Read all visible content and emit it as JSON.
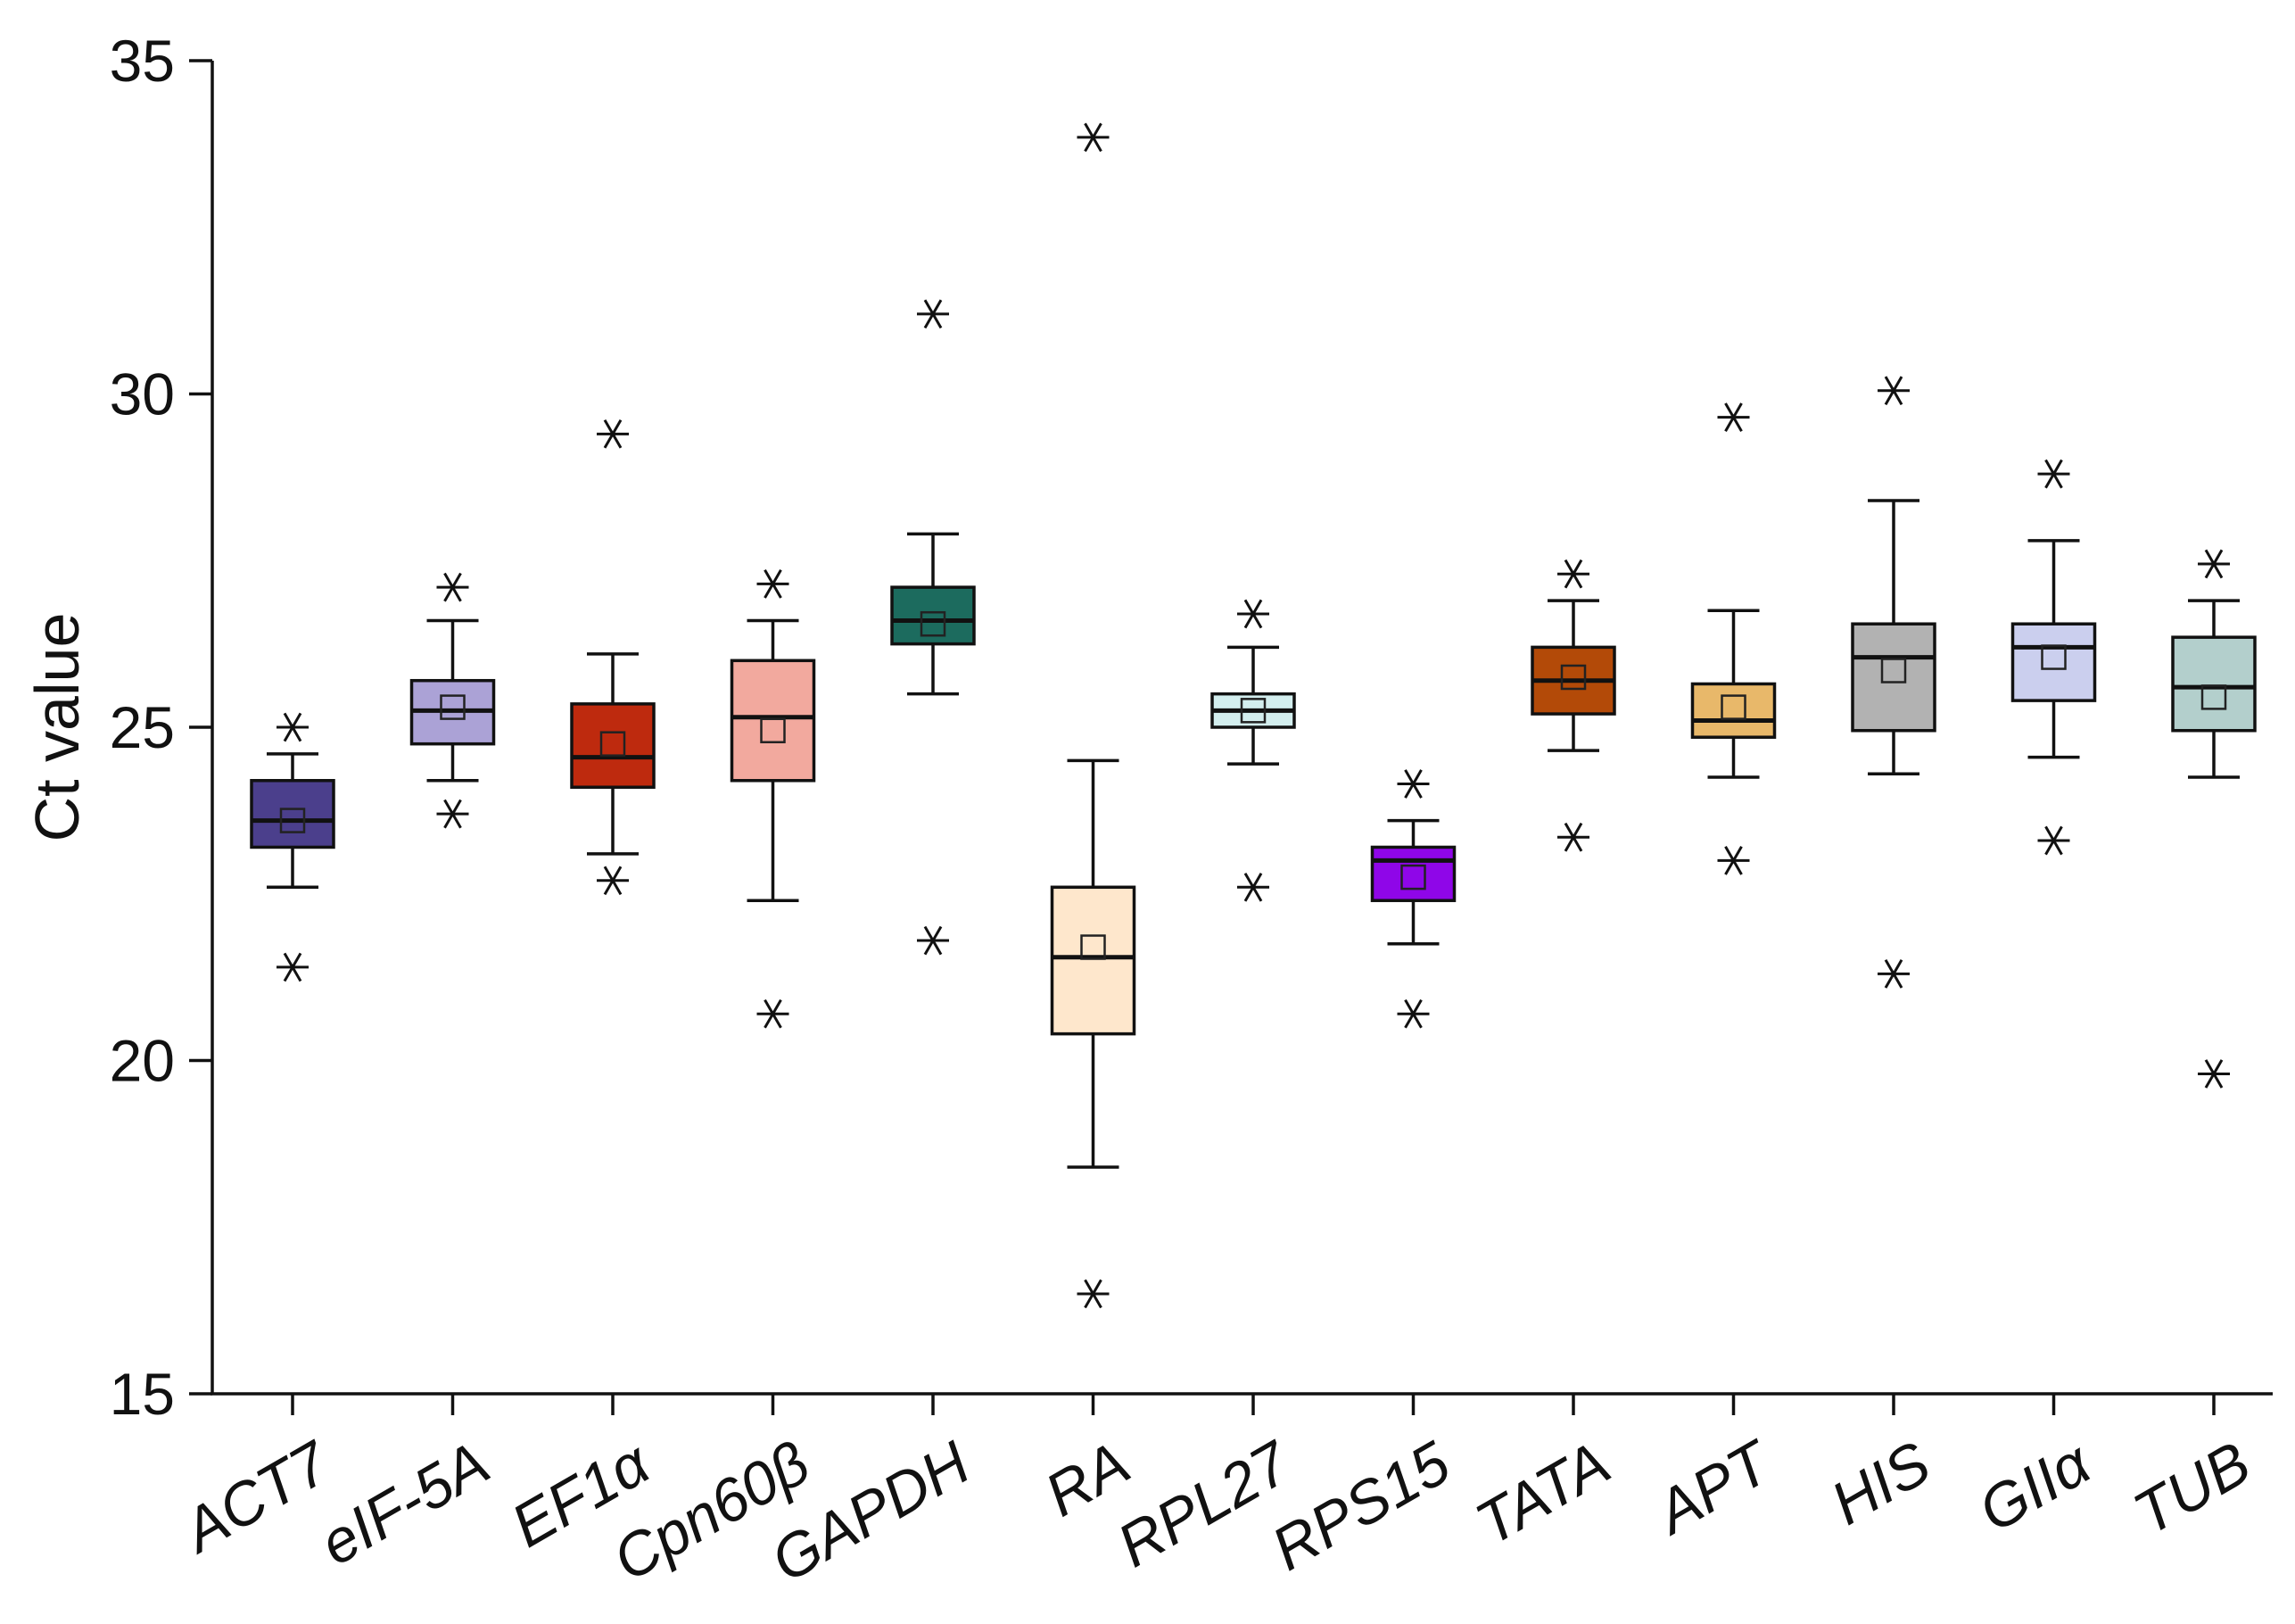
{
  "chart_data": {
    "type": "box",
    "title": "",
    "xlabel": "",
    "ylabel": "Ct value",
    "ylim": [
      15,
      35
    ],
    "yticks": [
      15,
      20,
      25,
      30,
      35
    ],
    "grid": false,
    "legend": "none",
    "categories": [
      "ACT7",
      "eIF-5A",
      "EF1α",
      "Cpn60β",
      "GAPDH",
      "RA",
      "RPL27",
      "RPS15",
      "TATA",
      "APT",
      "HIS",
      "GIIα",
      "TUB"
    ],
    "boxes": [
      {
        "name": "ACT7",
        "color": "#4B3F8C",
        "whisker_low": 22.6,
        "q1": 23.2,
        "median": 23.6,
        "q3": 24.2,
        "whisker_high": 24.6,
        "mean": 23.6,
        "outliers": [
          25.0,
          21.4
        ]
      },
      {
        "name": "eIF-5A",
        "color": "#ABA2D6",
        "whisker_low": 24.2,
        "q1": 24.75,
        "median": 25.25,
        "q3": 25.7,
        "whisker_high": 26.6,
        "mean": 25.3,
        "outliers": [
          27.1,
          23.7
        ]
      },
      {
        "name": "EF1α",
        "color": "#BE2A0E",
        "whisker_low": 23.1,
        "q1": 24.1,
        "median": 24.55,
        "q3": 25.35,
        "whisker_high": 26.1,
        "mean": 24.75,
        "outliers": [
          29.4,
          22.7
        ]
      },
      {
        "name": "Cpn60β",
        "color": "#F2A99E",
        "whisker_low": 22.4,
        "q1": 24.2,
        "median": 25.15,
        "q3": 26.0,
        "whisker_high": 26.6,
        "mean": 24.95,
        "outliers": [
          27.15,
          20.7
        ]
      },
      {
        "name": "GAPDH",
        "color": "#1C6B5E",
        "whisker_low": 25.5,
        "q1": 26.25,
        "median": 26.6,
        "q3": 27.1,
        "whisker_high": 27.9,
        "mean": 26.55,
        "outliers": [
          31.2,
          21.8
        ]
      },
      {
        "name": "RA",
        "color": "#FEE7CC",
        "whisker_low": 18.4,
        "q1": 20.4,
        "median": 21.55,
        "q3": 22.6,
        "whisker_high": 24.5,
        "mean": 21.7,
        "outliers": [
          33.85,
          16.5
        ]
      },
      {
        "name": "RPL27",
        "color": "#D3EEEE",
        "whisker_low": 24.45,
        "q1": 25.0,
        "median": 25.25,
        "q3": 25.5,
        "whisker_high": 26.2,
        "mean": 25.25,
        "outliers": [
          26.7,
          22.6
        ]
      },
      {
        "name": "RPS15",
        "color": "#8F06E8",
        "whisker_low": 21.75,
        "q1": 22.4,
        "median": 23.0,
        "q3": 23.2,
        "whisker_high": 23.6,
        "mean": 22.75,
        "outliers": [
          24.15,
          20.7
        ]
      },
      {
        "name": "TATA",
        "color": "#B34A08",
        "whisker_low": 24.65,
        "q1": 25.2,
        "median": 25.7,
        "q3": 26.2,
        "whisker_high": 26.9,
        "mean": 25.75,
        "outliers": [
          27.3,
          23.35
        ]
      },
      {
        "name": "APT",
        "color": "#E8B86A",
        "whisker_low": 24.25,
        "q1": 24.85,
        "median": 25.1,
        "q3": 25.65,
        "whisker_high": 26.75,
        "mean": 25.3,
        "outliers": [
          29.65,
          23.0
        ]
      },
      {
        "name": "HIS",
        "color": "#B2B2B2",
        "whisker_low": 24.3,
        "q1": 24.95,
        "median": 26.05,
        "q3": 26.55,
        "whisker_high": 28.4,
        "mean": 25.85,
        "outliers": [
          30.05,
          21.3
        ]
      },
      {
        "name": "GIIα",
        "color": "#CBCFEE",
        "whisker_low": 24.55,
        "q1": 25.4,
        "median": 26.2,
        "q3": 26.55,
        "whisker_high": 27.8,
        "mean": 26.05,
        "outliers": [
          28.8,
          23.3
        ]
      },
      {
        "name": "TUB",
        "color": "#B3CFCC",
        "whisker_low": 24.25,
        "q1": 24.95,
        "median": 25.6,
        "q3": 26.35,
        "whisker_high": 26.9,
        "mean": 25.45,
        "outliers": [
          27.45,
          19.8
        ]
      }
    ]
  }
}
